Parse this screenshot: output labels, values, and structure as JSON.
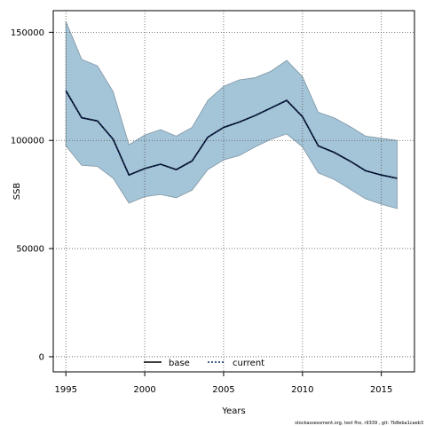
{
  "chart_data": {
    "type": "area",
    "xlabel": "Years",
    "ylabel": "SSB",
    "xlim": [
      1994.2,
      2017.1
    ],
    "ylim": [
      -7000,
      160000
    ],
    "x_ticks": [
      1995,
      2000,
      2005,
      2010,
      2015
    ],
    "y_ticks": [
      0,
      50000,
      100000,
      150000
    ],
    "x_tick_labels": [
      "1995",
      "2000",
      "2005",
      "2010",
      "2015"
    ],
    "y_tick_labels": [
      "0",
      "50000",
      "100000",
      "150000"
    ],
    "grid": true,
    "legend_position": "bottom-center",
    "years": [
      1995,
      1996,
      1997,
      1998,
      1999,
      2000,
      2001,
      2002,
      2003,
      2004,
      2005,
      2006,
      2007,
      2008,
      2009,
      2010,
      2011,
      2012,
      2013,
      2014,
      2015,
      2016
    ],
    "series": [
      {
        "name": "base",
        "style": "solid",
        "color": "#000000",
        "values": [
          123000,
          110500,
          109000,
          100500,
          84000,
          87000,
          89000,
          86500,
          90500,
          101500,
          106000,
          108500,
          111500,
          115000,
          118500,
          111000,
          97500,
          94500,
          90500,
          86000,
          84000,
          82500
        ]
      },
      {
        "name": "current",
        "style": "dotted",
        "color": "#0a2a6b",
        "values": [
          123000,
          110500,
          109000,
          100500,
          84000,
          87000,
          89000,
          86500,
          90500,
          101500,
          106000,
          108500,
          111500,
          115000,
          118500,
          111000,
          97500,
          94500,
          90500,
          86000,
          84000,
          82500
        ]
      }
    ],
    "confidence_band": {
      "color": "#a4c4d7",
      "upper": [
        155000,
        137500,
        134500,
        122500,
        98000,
        102500,
        105000,
        102000,
        106000,
        118500,
        125000,
        128000,
        129000,
        132000,
        137000,
        129500,
        113000,
        110500,
        106500,
        102000,
        101000,
        100000
      ],
      "lower": [
        97500,
        88500,
        88000,
        82500,
        71000,
        74000,
        75000,
        73500,
        77000,
        86500,
        91000,
        93000,
        97000,
        100500,
        103000,
        97000,
        85000,
        82000,
        77500,
        73000,
        70500,
        68500
      ]
    },
    "footnote": "stockassessment.org, test fho, r9339 , git: 7b8eba1caeb3"
  }
}
